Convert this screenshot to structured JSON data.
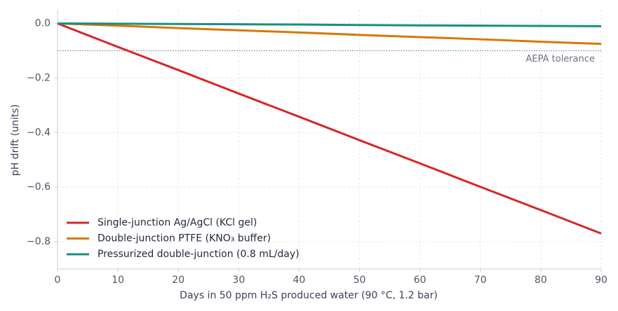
{
  "chart_data": {
    "type": "line",
    "x_label": "Days in 50 ppm H₂S produced water (90 °C, 1.2 bar)",
    "y_label": "pH drift (units)",
    "x": [
      0,
      10,
      20,
      30,
      40,
      50,
      60,
      70,
      80,
      90
    ],
    "series": [
      {
        "name": "Single-junction Ag/AgCl (KCl gel)",
        "color": "#d62728",
        "values": [
          0,
          -0.086,
          -0.171,
          -0.257,
          -0.342,
          -0.428,
          -0.513,
          -0.599,
          -0.684,
          -0.77
        ]
      },
      {
        "name": "Double-junction PTFE (KNO₃ buffer)",
        "color": "#d97706",
        "values": [
          0,
          -0.008,
          -0.017,
          -0.025,
          -0.033,
          -0.042,
          -0.05,
          -0.058,
          -0.067,
          -0.075
        ]
      },
      {
        "name": "Pressurized double-junction (0.8 mL/day)",
        "color": "#16907f",
        "values": [
          0,
          -0.001,
          -0.002,
          -0.003,
          -0.004,
          -0.006,
          -0.007,
          -0.008,
          -0.009,
          -0.01
        ]
      }
    ],
    "xlim": [
      0,
      90
    ],
    "xticks": [
      0,
      10,
      20,
      30,
      40,
      50,
      60,
      70,
      80,
      90
    ],
    "ylim": [
      -0.9,
      0.05
    ],
    "yticks": [
      {
        "value": 0,
        "label": "0.0"
      },
      {
        "value": -0.2,
        "label": "−0.2"
      },
      {
        "value": -0.4,
        "label": "−0.4"
      },
      {
        "value": -0.6,
        "label": "−0.6"
      },
      {
        "value": -0.8,
        "label": "−0.8"
      }
    ],
    "grid": true,
    "legend": "lower left",
    "reference_line": {
      "value": -0.1,
      "label": "AEPA tolerance"
    }
  }
}
